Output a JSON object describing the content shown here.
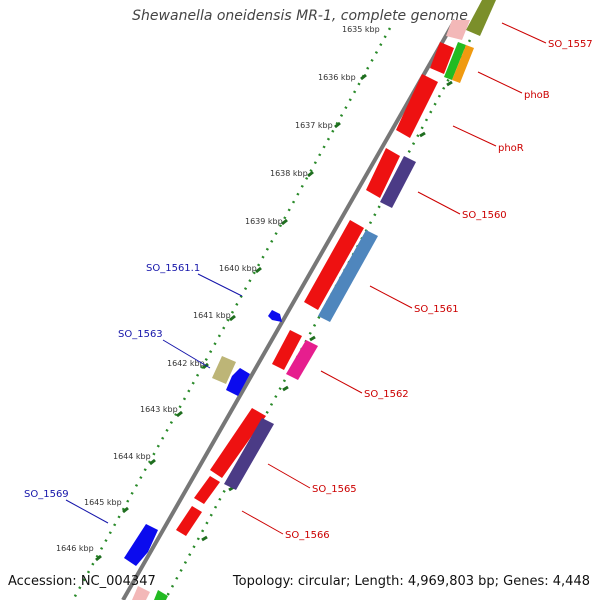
{
  "title": "Shewanella oneidensis MR-1, complete genome",
  "footer": {
    "accession": "Accession: NC_004347",
    "topology": "Topology: circular; Length: 4,969,803 bp; Genes: 4,448"
  },
  "ticks": [
    "1635 kbp",
    "1636 kbp",
    "1637 kbp",
    "1638 kbp",
    "1639 kbp",
    "1640 kbp",
    "1641 kbp",
    "1642 kbp",
    "1643 kbp",
    "1644 kbp",
    "1645 kbp",
    "1646 kbp"
  ],
  "colors": {
    "red_gene": "#ee1111",
    "blue_gene": "#0b0bee",
    "steelblue_gene": "#4f86bd",
    "purple_gene": "#4b3b86",
    "pink_gene": "#e61e8e",
    "olive_gene": "#7b8f2a",
    "khaki_gene": "#bdb577",
    "green_gene": "#22bb22",
    "orange_gene": "#f09a10",
    "backbone": "#777777",
    "tick_dots": "#2a8a2a",
    "label_red": "#cc0000",
    "label_blue": "#1515aa"
  },
  "gene_labels_right": [
    "SO_1557",
    "phoB",
    "phoR",
    "SO_1560",
    "SO_1561",
    "SO_1562",
    "SO_1565",
    "SO_1566"
  ],
  "gene_labels_left": [
    "SO_1561.1",
    "SO_1563",
    "SO_1569"
  ]
}
